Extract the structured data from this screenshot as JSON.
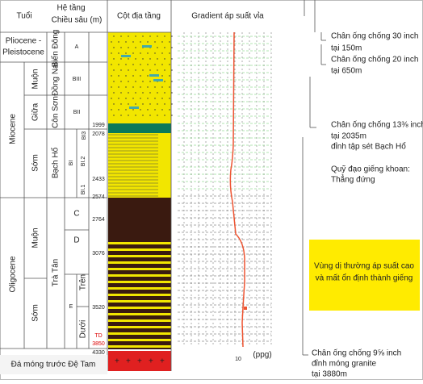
{
  "header": {
    "age": "Tuổi",
    "formation": "Hệ tầng",
    "depth": "Chiều sâu (m)",
    "column": "Cột địa tầng",
    "gradient": "Gradient áp suất vỉa"
  },
  "epochs": {
    "pliocene": [
      "Pliocene -",
      "Pleistocene"
    ],
    "miocene": "Miocene",
    "oligocene": "Oligocene"
  },
  "stages": [
    "Muộn",
    "Giữa",
    "Sớm",
    "Muộn",
    "Sớm"
  ],
  "formations": [
    "Biển Đông",
    "Đồng Nai",
    "Côn Sơn",
    "Bạch Hổ",
    "Trà Tân"
  ],
  "units": [
    "A",
    "BIII",
    "BII",
    "BI3",
    "BI",
    "BI.2",
    "BI.1",
    "C",
    "D",
    "E",
    "Trên",
    "Dưới"
  ],
  "depths": [
    "1999",
    "2078",
    "2433",
    "2574",
    "2764",
    "3076",
    "3520",
    "4330"
  ],
  "td": {
    "label": "TD",
    "depth": "3850"
  },
  "basement": "Đá móng trước Đệ Tam",
  "gradient_axis": {
    "tick": "10",
    "unit": "(ppg)"
  },
  "annotations": {
    "casing30": [
      "Chân ống chống 30 inch",
      "tại 150m"
    ],
    "casing20": [
      "Chân ống chống 20 inch",
      "tại 650m"
    ],
    "casing13": [
      "Chân ống chống 13⅜ inch",
      "tại 2035m",
      "đỉnh tập sét Bạch Hổ"
    ],
    "trajectory": [
      "Quỹ đạo giếng khoan:",
      "Thẳng đứng"
    ],
    "zone": [
      "Vùng dị thường áp suất cao",
      "và mất ổn định thành giếng"
    ],
    "casing9": [
      "Chân ống chống 9⅝ inch",
      "đỉnh móng granite",
      "tại 3880m"
    ]
  }
}
